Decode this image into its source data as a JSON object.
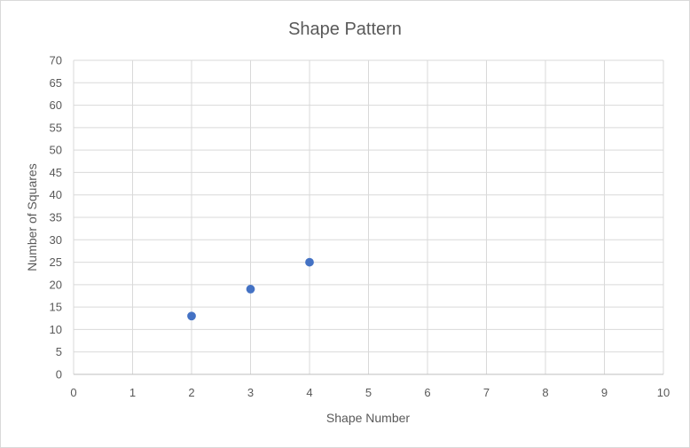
{
  "chart_data": {
    "type": "scatter",
    "title": "Shape Pattern",
    "xlabel": "Shape Number",
    "ylabel": "Number of Squares",
    "xlim": [
      0,
      10
    ],
    "ylim": [
      0,
      70
    ],
    "x_ticks": [
      0,
      1,
      2,
      3,
      4,
      5,
      6,
      7,
      8,
      9,
      10
    ],
    "y_ticks": [
      0,
      5,
      10,
      15,
      20,
      25,
      30,
      35,
      40,
      45,
      50,
      55,
      60,
      65,
      70
    ],
    "grid": true,
    "legend": "none",
    "series": [
      {
        "color": "#4472c4",
        "points": [
          {
            "x": 2,
            "y": 13
          },
          {
            "x": 3,
            "y": 19
          },
          {
            "x": 4,
            "y": 25
          }
        ]
      }
    ]
  }
}
